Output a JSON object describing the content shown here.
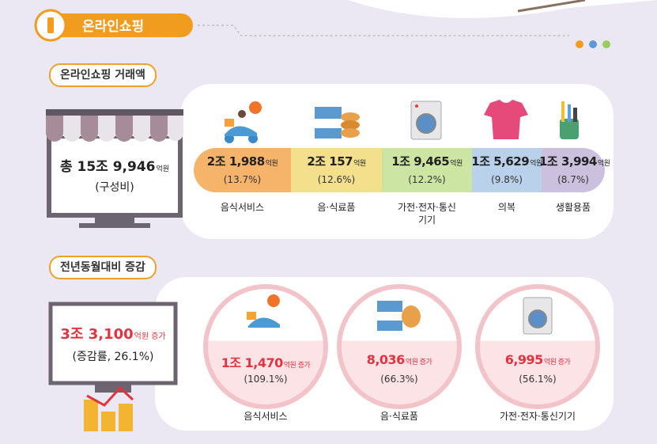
{
  "header": {
    "title": "온라인쇼핑"
  },
  "composition": {
    "label": "온라인쇼핑 거래액",
    "total": {
      "prefix": "총",
      "amount": "15조 9,946",
      "unit": "억원",
      "note": "(구성비)"
    },
    "items": [
      {
        "amount": "2조 1,988",
        "unit": "억원",
        "share": "(13.7%)",
        "label": "음식서비스"
      },
      {
        "amount": "2조 157",
        "unit": "억원",
        "share": "(12.6%)",
        "label": "음·식료품"
      },
      {
        "amount": "1조 9,465",
        "unit": "억원",
        "share": "(12.2%)",
        "label": "가전·전자·통신기기"
      },
      {
        "amount": "1조 5,629",
        "unit": "억원",
        "share": "(9.8%)",
        "label": "의복"
      },
      {
        "amount": "1조 3,994",
        "unit": "억원",
        "share": "(8.7%)",
        "label": "생활용품"
      }
    ]
  },
  "change": {
    "label": "전년동월대비 증감",
    "total": {
      "amount": "3조 3,100",
      "unit": "억원 증가",
      "note": "(증감률, 26.1%)"
    },
    "items": [
      {
        "amount": "1조 1,470",
        "unit": "억원 증가",
        "rate": "(109.1%)",
        "label": "음식서비스"
      },
      {
        "amount": "8,036",
        "unit": "억원 증가",
        "rate": "(66.3%)",
        "label": "음·식료품"
      },
      {
        "amount": "6,995",
        "unit": "억원 증가",
        "rate": "(56.1%)",
        "label": "가전·전자·통신기기"
      }
    ]
  }
}
